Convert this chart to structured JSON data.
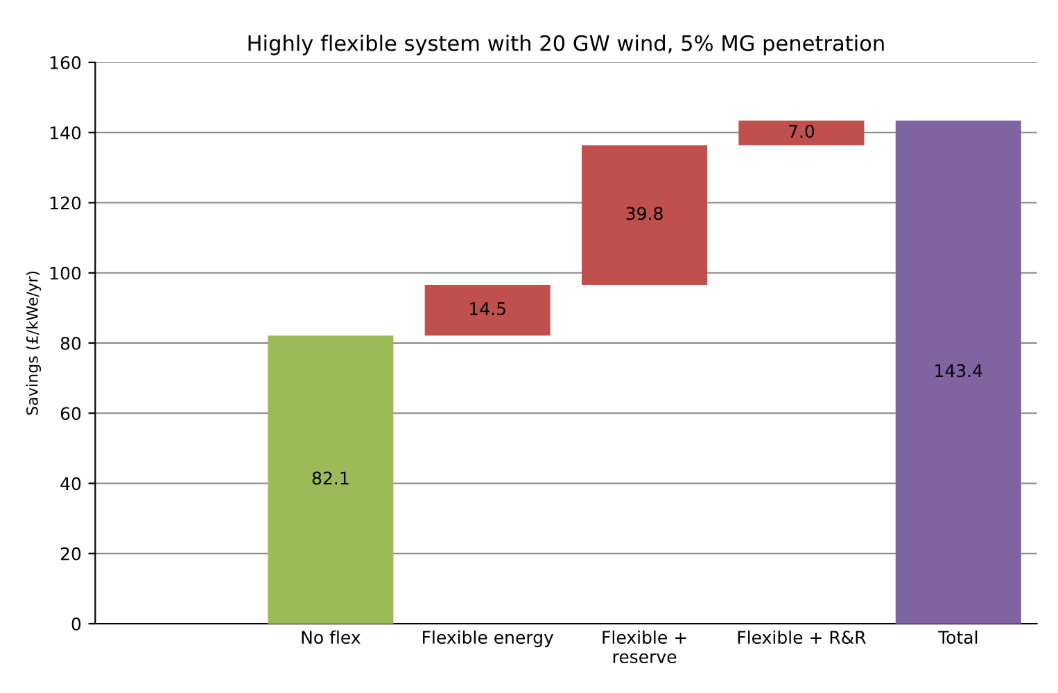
{
  "chart_data": {
    "type": "bar",
    "title": "Highly flexible system with 20 GW wind, 5% MG penetration",
    "ylabel": "Savings (£/kWe/yr)",
    "categories": [
      null,
      "No flex",
      "Flexible energy",
      "Flexible +\nreserve",
      "Flexible + R&R",
      "Total"
    ],
    "values": [
      null,
      82.1,
      14.5,
      39.8,
      7.0,
      143.4
    ],
    "base": [
      null,
      0,
      82.1,
      96.6,
      136.4,
      0
    ],
    "colors": [
      "#9bbb59",
      "#9bbb59",
      "#c0504d",
      "#c0504d",
      "#c0504d",
      "#8064a2"
    ],
    "value_labels": [
      null,
      "82.1",
      "14.5",
      "39.8",
      "7.0",
      "143.4"
    ],
    "ylim": [
      0,
      160
    ],
    "yticks": [
      0,
      20,
      40,
      60,
      80,
      100,
      120,
      140,
      160
    ],
    "grid": "y"
  }
}
